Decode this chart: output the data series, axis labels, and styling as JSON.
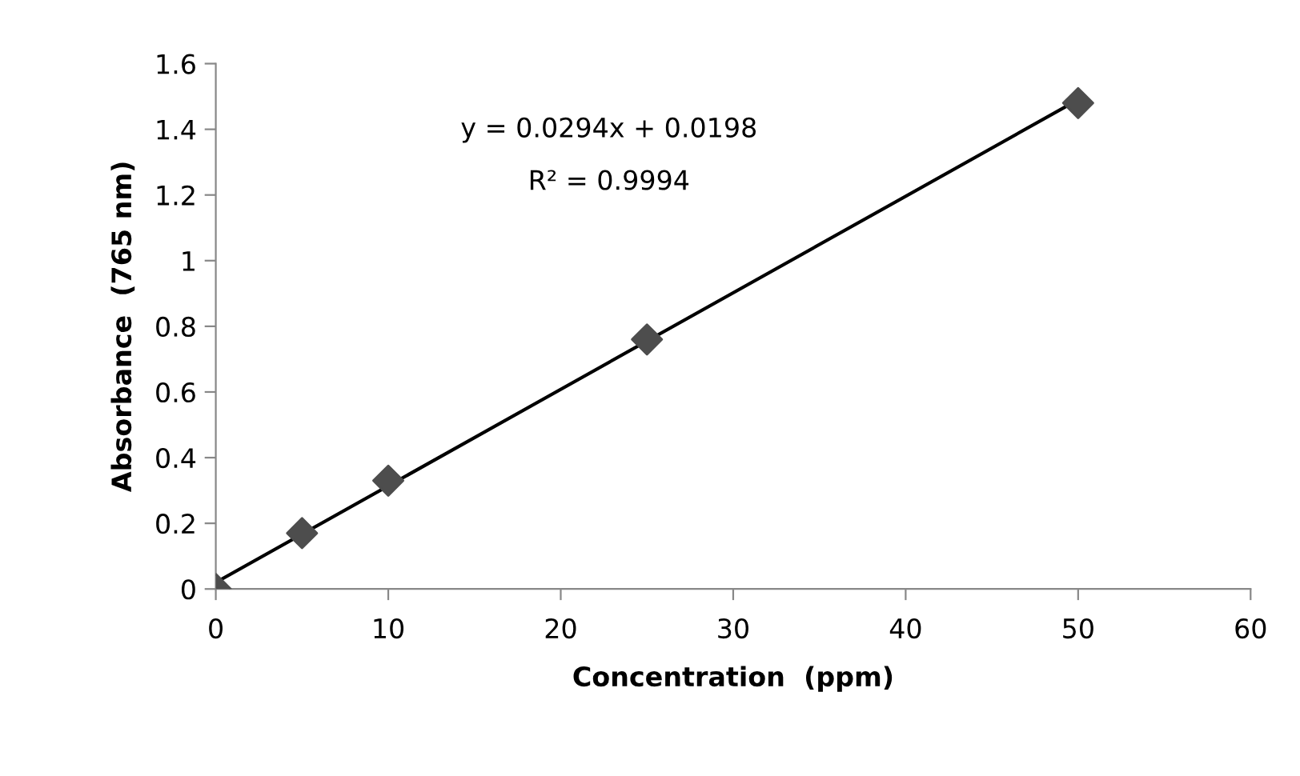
{
  "chart_data": {
    "type": "scatter",
    "xlabel": "Concentration  (ppm)",
    "ylabel": "Absorbance  (765 nm)",
    "annotations": [
      "y = 0.0294x + 0.0198",
      "R² = 0.9994"
    ],
    "series": [
      {
        "type": "scatter",
        "color": "#4d4d4d",
        "marker": "diamond",
        "x": [
          0,
          5,
          10,
          25,
          50
        ],
        "values": [
          0,
          0.17,
          0.33,
          0.76,
          1.48
        ]
      },
      {
        "type": "line",
        "color": "#000000",
        "marker": "none",
        "line_style": "solid",
        "x": [
          0,
          50
        ],
        "values": [
          0.02,
          1.49
        ]
      }
    ],
    "xlim": [
      0,
      60
    ],
    "xticks": [
      0,
      10,
      20,
      30,
      40,
      50,
      60
    ],
    "ylim": [
      0,
      1.6
    ],
    "yticks": [
      0,
      {
        "value": 0.2,
        "label": "0.2"
      },
      {
        "value": 0.4,
        "label": "0.4"
      },
      {
        "value": 0.6,
        "label": "0.6"
      },
      {
        "value": 0.8,
        "label": "0.8"
      },
      1,
      {
        "value": 1.2,
        "label": "1.2"
      },
      {
        "value": 1.4,
        "label": "1.4"
      },
      {
        "value": 1.6,
        "label": "1.6"
      }
    ],
    "grid": false,
    "legend": false
  }
}
